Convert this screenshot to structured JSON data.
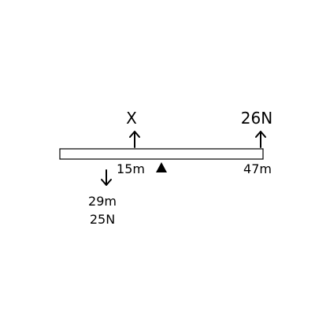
{
  "beam": {
    "forces": [
      {
        "label": "X",
        "direction": "up"
      },
      {
        "label": "26N",
        "direction": "up"
      },
      {
        "direction": "down",
        "position_label": "29m",
        "magnitude_label": "25N"
      }
    ],
    "distance_labels": [
      "15m",
      "47m"
    ],
    "support": "triangle"
  }
}
